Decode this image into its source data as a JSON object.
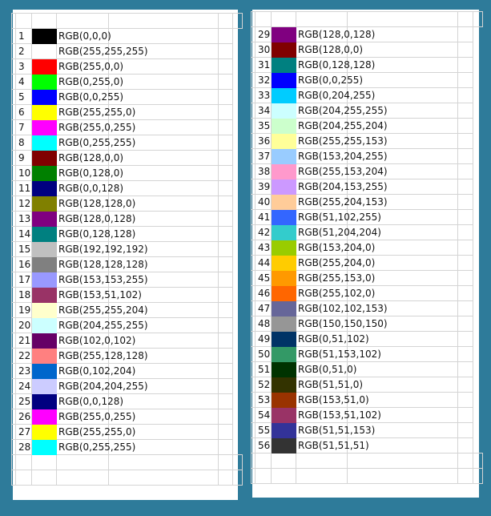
{
  "left_sheet": {
    "rows": [
      {
        "index": "1",
        "label": "RGB(0,0,0)",
        "color": "#000000"
      },
      {
        "index": "2",
        "label": "RGB(255,255,255)",
        "color": "#ffffff"
      },
      {
        "index": "3",
        "label": "RGB(255,0,0)",
        "color": "#ff0000"
      },
      {
        "index": "4",
        "label": "RGB(0,255,0)",
        "color": "#00ff00"
      },
      {
        "index": "5",
        "label": "RGB(0,0,255)",
        "color": "#0000ff"
      },
      {
        "index": "6",
        "label": "RGB(255,255,0)",
        "color": "#ffff00"
      },
      {
        "index": "7",
        "label": "RGB(255,0,255)",
        "color": "#ff00ff"
      },
      {
        "index": "8",
        "label": "RGB(0,255,255)",
        "color": "#00ffff"
      },
      {
        "index": "9",
        "label": "RGB(128,0,0)",
        "color": "#800000"
      },
      {
        "index": "10",
        "label": "RGB(0,128,0)",
        "color": "#008000"
      },
      {
        "index": "11",
        "label": "RGB(0,0,128)",
        "color": "#000080"
      },
      {
        "index": "12",
        "label": "RGB(128,128,0)",
        "color": "#808000"
      },
      {
        "index": "13",
        "label": "RGB(128,0,128)",
        "color": "#800080"
      },
      {
        "index": "14",
        "label": "RGB(0,128,128)",
        "color": "#008080"
      },
      {
        "index": "15",
        "label": "RGB(192,192,192)",
        "color": "#c0c0c0"
      },
      {
        "index": "16",
        "label": "RGB(128,128,128)",
        "color": "#808080"
      },
      {
        "index": "17",
        "label": "RGB(153,153,255)",
        "color": "#9999ff"
      },
      {
        "index": "18",
        "label": "RGB(153,51,102)",
        "color": "#993366"
      },
      {
        "index": "19",
        "label": "RGB(255,255,204)",
        "color": "#ffffcc"
      },
      {
        "index": "20",
        "label": "RGB(204,255,255)",
        "color": "#ccffff"
      },
      {
        "index": "21",
        "label": "RGB(102,0,102)",
        "color": "#660066"
      },
      {
        "index": "22",
        "label": "RGB(255,128,128)",
        "color": "#ff8080"
      },
      {
        "index": "23",
        "label": "RGB(0,102,204)",
        "color": "#0066cc"
      },
      {
        "index": "24",
        "label": "RGB(204,204,255)",
        "color": "#ccccff"
      },
      {
        "index": "25",
        "label": "RGB(0,0,128)",
        "color": "#000080"
      },
      {
        "index": "26",
        "label": "RGB(255,0,255)",
        "color": "#ff00ff"
      },
      {
        "index": "27",
        "label": "RGB(255,255,0)",
        "color": "#ffff00"
      },
      {
        "index": "28",
        "label": "RGB(0,255,255)",
        "color": "#00ffff"
      }
    ]
  },
  "right_sheet": {
    "rows": [
      {
        "index": "29",
        "label": "RGB(128,0,128)",
        "color": "#800080"
      },
      {
        "index": "30",
        "label": "RGB(128,0,0)",
        "color": "#800000"
      },
      {
        "index": "31",
        "label": "RGB(0,128,128)",
        "color": "#008080"
      },
      {
        "index": "32",
        "label": "RGB(0,0,255)",
        "color": "#0000ff"
      },
      {
        "index": "33",
        "label": "RGB(0,204,255)",
        "color": "#00ccff"
      },
      {
        "index": "34",
        "label": "RGB(204,255,255)",
        "color": "#ccffff"
      },
      {
        "index": "35",
        "label": "RGB(204,255,204)",
        "color": "#ccffcc"
      },
      {
        "index": "36",
        "label": "RGB(255,255,153)",
        "color": "#ffff99"
      },
      {
        "index": "37",
        "label": "RGB(153,204,255)",
        "color": "#99ccff"
      },
      {
        "index": "38",
        "label": "RGB(255,153,204)",
        "color": "#ff99cc"
      },
      {
        "index": "39",
        "label": "RGB(204,153,255)",
        "color": "#cc99ff"
      },
      {
        "index": "40",
        "label": "RGB(255,204,153)",
        "color": "#ffcc99"
      },
      {
        "index": "41",
        "label": "RGB(51,102,255)",
        "color": "#3366ff"
      },
      {
        "index": "42",
        "label": "RGB(51,204,204)",
        "color": "#33cccc"
      },
      {
        "index": "43",
        "label": "RGB(153,204,0)",
        "color": "#99cc00"
      },
      {
        "index": "44",
        "label": "RGB(255,204,0)",
        "color": "#ffcc00"
      },
      {
        "index": "45",
        "label": "RGB(255,153,0)",
        "color": "#ff9900"
      },
      {
        "index": "46",
        "label": "RGB(255,102,0)",
        "color": "#ff6600"
      },
      {
        "index": "47",
        "label": "RGB(102,102,153)",
        "color": "#666699"
      },
      {
        "index": "48",
        "label": "RGB(150,150,150)",
        "color": "#969696"
      },
      {
        "index": "49",
        "label": "RGB(0,51,102)",
        "color": "#003366"
      },
      {
        "index": "50",
        "label": "RGB(51,153,102)",
        "color": "#339966"
      },
      {
        "index": "51",
        "label": "RGB(0,51,0)",
        "color": "#003300"
      },
      {
        "index": "52",
        "label": "RGB(51,51,0)",
        "color": "#333300"
      },
      {
        "index": "53",
        "label": "RGB(153,51,0)",
        "color": "#993300"
      },
      {
        "index": "54",
        "label": "RGB(153,51,102)",
        "color": "#993366"
      },
      {
        "index": "55",
        "label": "RGB(51,51,153)",
        "color": "#333399"
      },
      {
        "index": "56",
        "label": "RGB(51,51,51)",
        "color": "#333333"
      }
    ]
  },
  "colors": {
    "background": "#2e7b9a",
    "gridline": "#d4d4d4"
  }
}
